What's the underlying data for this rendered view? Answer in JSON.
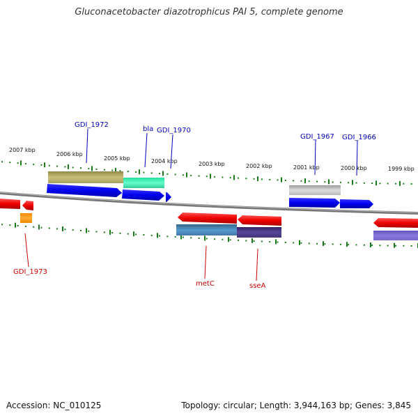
{
  "title": "Gluconacetobacter diazotrophicus PAI 5, complete genome",
  "footer": {
    "accession": "Accession: NC_010125",
    "summary": "Topology: circular; Length: 3,944,163 bp; Genes: 3,845"
  },
  "colors": {
    "forward_label": "#0000bb",
    "reverse_label": "#cc0000",
    "tick": "#1a7a1a",
    "backbone": "#888888"
  },
  "scale_labels": [
    "2007 kbp",
    "2006 kbp",
    "2005 kbp",
    "2004 kbp",
    "2003 kbp",
    "2002 kbp",
    "2001 kbp",
    "2000 kbp",
    "1999 kbp"
  ],
  "gene_labels_top": [
    "GDI_1972",
    "bla",
    "GDI_1970",
    "GDI_1967",
    "GDI_1966"
  ],
  "gene_labels_bottom": [
    "GDI_1973",
    "metC",
    "sseA"
  ]
}
